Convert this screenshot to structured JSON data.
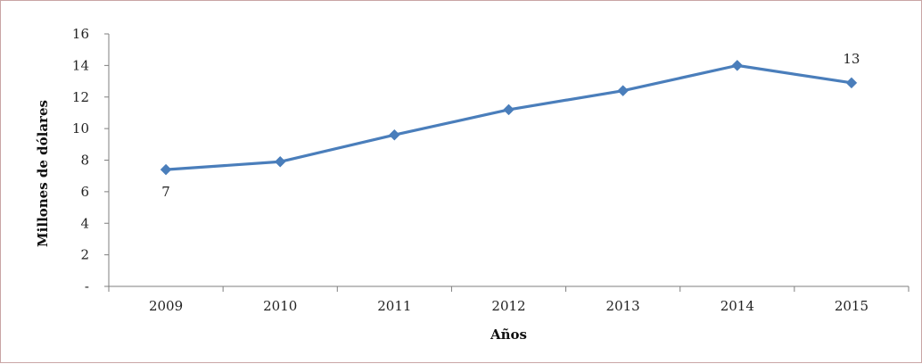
{
  "chart_data": {
    "type": "line",
    "title": "",
    "xlabel": "Años",
    "ylabel": "Millones de dólares",
    "categories": [
      "2009",
      "2010",
      "2011",
      "2012",
      "2013",
      "2014",
      "2015"
    ],
    "series": [
      {
        "values": [
          7.4,
          7.9,
          9.6,
          11.2,
          12.4,
          14.0,
          12.9
        ],
        "color": "#4a7ebb",
        "marker": "diamond"
      }
    ],
    "ylim": [
      0,
      16
    ],
    "yticks": [
      0,
      2,
      4,
      6,
      8,
      10,
      12,
      14,
      16
    ],
    "ytick_labels": [
      "-",
      "2",
      "4",
      "6",
      "8",
      "10",
      "12",
      "14",
      "16"
    ],
    "data_labels": [
      {
        "index": 0,
        "text": "7",
        "placement": "below"
      },
      {
        "index": 6,
        "text": "13",
        "placement": "above"
      }
    ],
    "grid": false,
    "legend": "none"
  }
}
